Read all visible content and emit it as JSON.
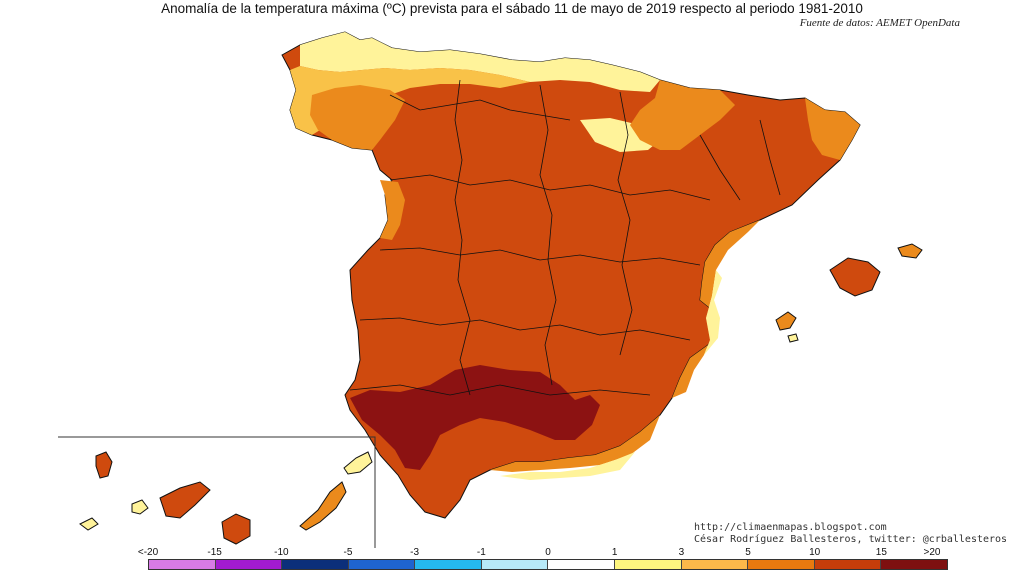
{
  "header": {
    "title": "Anomalía de la temperatura máxima (ºC) prevista para el sábado 11 de mayo de 2019 respecto al periodo 1981-2010",
    "source": "Fuente de datos: AEMET OpenData"
  },
  "credits": {
    "blog": "http://climaenmapas.blogspot.com",
    "author": "César Rodríguez Ballesteros, twitter: @crballesteros"
  },
  "legend": {
    "ticks": [
      "<-20",
      "-15",
      "-10",
      "-5",
      "-3",
      "-1",
      "0",
      "1",
      "3",
      "5",
      "10",
      "15",
      ">20"
    ],
    "colors": [
      "#d77be6",
      "#a21bd0",
      "#0b2f7a",
      "#1f64cf",
      "#25b8ee",
      "#b7e9f8",
      "#ffffff",
      "#fdf67f",
      "#fcb84a",
      "#e8790f",
      "#c63d0a",
      "#7e1010"
    ]
  },
  "map": {
    "colors": {
      "sea": "#ffffff",
      "pale": "#fff39a",
      "light_orange": "#f9c248",
      "orange": "#eb8a1c",
      "red_orange": "#cf4a0e",
      "dark_red": "#8c1212",
      "borders": "#111111"
    }
  }
}
